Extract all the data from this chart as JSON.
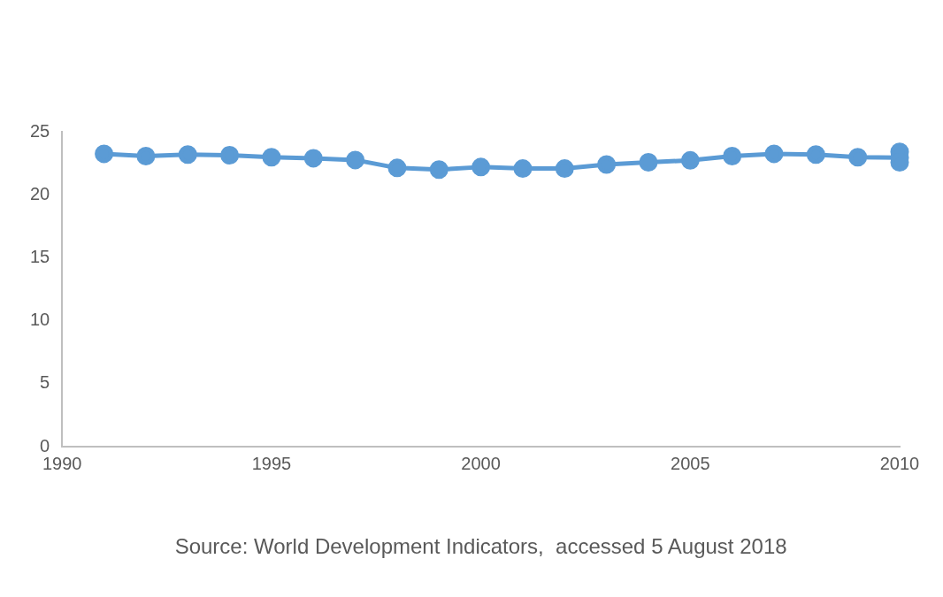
{
  "chart_data": {
    "type": "line",
    "x": [
      1991,
      1992,
      1993,
      1994,
      1995,
      1996,
      1997,
      1998,
      1999,
      2000,
      2001,
      2002,
      2003,
      2004,
      2005,
      2006,
      2007,
      2008,
      2009,
      2010,
      2010,
      2010
    ],
    "series": [
      {
        "color": "#5b9bd5",
        "values": [
          23.25,
          23.07,
          23.19,
          23.14,
          22.98,
          22.9,
          22.76,
          22.13,
          22.0,
          22.2,
          22.08,
          22.08,
          22.4,
          22.58,
          22.73,
          23.07,
          23.25,
          23.19,
          22.98,
          22.95,
          23.4,
          22.58
        ]
      }
    ],
    "xlim": [
      1990,
      2010
    ],
    "xticks": [
      1990,
      1995,
      2000,
      2005,
      2010
    ],
    "ylim": [
      0,
      25
    ],
    "yticks": [
      0,
      5,
      10,
      15,
      20,
      25
    ],
    "grid": false,
    "legend": false,
    "marker": "circle",
    "line_style": "solid",
    "annotations": [
      "Source: World Development Indicators,  accessed 5 August 2018"
    ]
  }
}
